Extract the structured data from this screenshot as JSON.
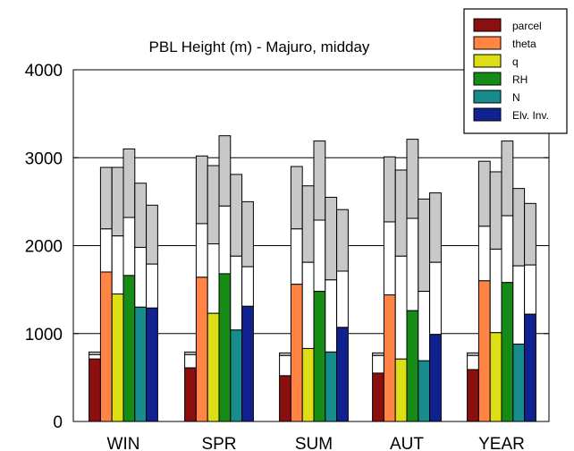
{
  "chart_data": {
    "type": "bar",
    "title": "PBL Height (m) - Majuro, midday",
    "xlabel": "",
    "ylabel": "",
    "ylim": [
      0,
      4000
    ],
    "yticks": [
      0,
      1000,
      2000,
      3000,
      4000
    ],
    "ytick_labels": [
      "0",
      "1000",
      "2000",
      "3000",
      "4000"
    ],
    "grid": true,
    "legend_position": "top-right",
    "categories": [
      "WIN",
      "SPR",
      "SUM",
      "AUT",
      "YEAR"
    ],
    "stack_colors": {
      "middle": "#ffffff",
      "top": "#c8c8c8"
    },
    "series": [
      {
        "name": "parcel",
        "color": "#8b0f0f",
        "values": [
          710,
          610,
          520,
          550,
          590
        ],
        "upper1": [
          760,
          760,
          750,
          750,
          750
        ],
        "upper2": [
          790,
          790,
          780,
          780,
          780
        ]
      },
      {
        "name": "theta",
        "color": "#ff8446",
        "values": [
          1700,
          1640,
          1560,
          1440,
          1600
        ],
        "upper1": [
          2190,
          2250,
          2190,
          2270,
          2220
        ],
        "upper2": [
          2890,
          3020,
          2900,
          3010,
          2960
        ]
      },
      {
        "name": "q",
        "color": "#dede16",
        "values": [
          1450,
          1230,
          830,
          710,
          1010
        ],
        "upper1": [
          2110,
          2020,
          1810,
          1880,
          1960
        ],
        "upper2": [
          2890,
          2910,
          2680,
          2860,
          2840
        ]
      },
      {
        "name": "RH",
        "color": "#168c16",
        "values": [
          1660,
          1680,
          1480,
          1260,
          1580
        ],
        "upper1": [
          2320,
          2450,
          2290,
          2310,
          2340
        ],
        "upper2": [
          3100,
          3250,
          3190,
          3210,
          3190
        ]
      },
      {
        "name": "N",
        "color": "#168c8c",
        "values": [
          1300,
          1040,
          790,
          690,
          880
        ],
        "upper1": [
          1980,
          1880,
          1610,
          1480,
          1770
        ],
        "upper2": [
          2710,
          2810,
          2550,
          2530,
          2650
        ]
      },
      {
        "name": "Elv. Inv.",
        "color": "#112290",
        "values": [
          1290,
          1310,
          1070,
          990,
          1220
        ],
        "upper1": [
          1790,
          1760,
          1710,
          1810,
          1780
        ],
        "upper2": [
          2460,
          2500,
          2410,
          2600,
          2480
        ]
      }
    ]
  }
}
